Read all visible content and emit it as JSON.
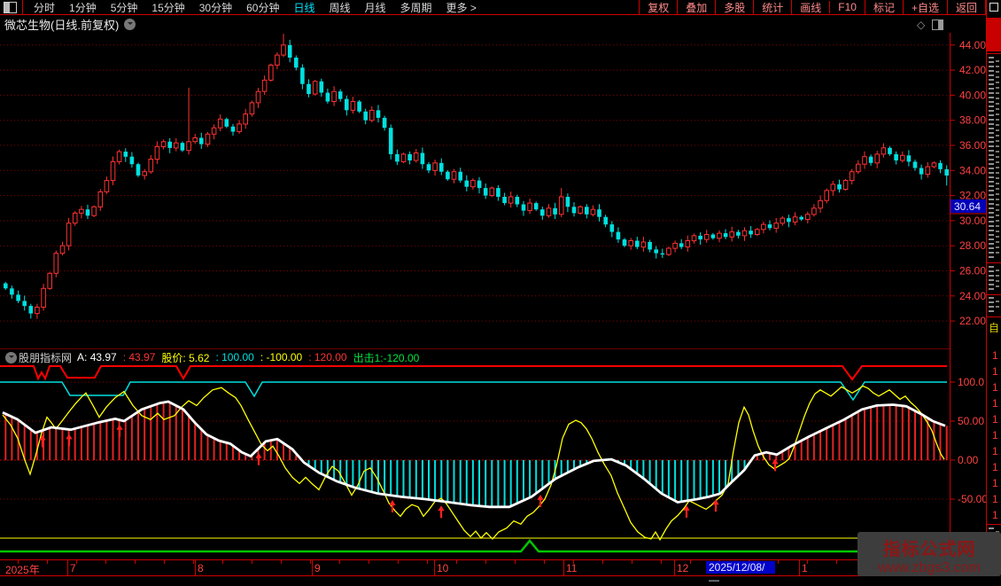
{
  "menubar": {
    "left_items": [
      "分时",
      "1分钟",
      "5分钟",
      "15分钟",
      "30分钟",
      "60分钟",
      "日线",
      "周线",
      "月线",
      "多周期",
      "更多 >"
    ],
    "active_item": "日线",
    "right_items": [
      "复权",
      "叠加",
      "多股",
      "统计",
      "画线",
      "F10",
      "标记",
      "+自选",
      "返回"
    ]
  },
  "titlebar": {
    "title": "微芯生物(日线.前复权)"
  },
  "price_axis": {
    "labels": [
      "44.00",
      "42.00",
      "40.00",
      "38.00",
      "36.00",
      "34.00",
      "32.00",
      "30.00",
      "28.00",
      "26.00",
      "24.00",
      "22.00"
    ],
    "values": [
      44,
      42,
      40,
      38,
      36,
      34,
      32,
      30,
      28,
      26,
      24,
      22
    ],
    "last_price": "30.64",
    "last_price_bg": "#0000b8"
  },
  "indicator_header": {
    "source": "股朋指标网",
    "segments": [
      {
        "text": "A: 43.97",
        "color": "#ffffff"
      },
      {
        "text": ": 43.97",
        "color": "#ff3333"
      },
      {
        "text": "股价: 5.62",
        "color": "#ffff00"
      },
      {
        "text": ": 100.00",
        "color": "#00dfdf"
      },
      {
        "text": ": -100.00",
        "color": "#ffff00"
      },
      {
        "text": ": 120.00",
        "color": "#ff3333"
      },
      {
        "text": "出击1:-120.00",
        "color": "#00e63c"
      }
    ]
  },
  "indicator_axis": {
    "labels": [
      "100.0",
      "50.00",
      "0.00",
      "-50.00"
    ],
    "values": [
      100,
      50,
      0,
      -50
    ]
  },
  "date_axis": {
    "year_label": "2025年",
    "months": [
      {
        "label": "7",
        "x": 79
      },
      {
        "label": "8",
        "x": 223
      },
      {
        "label": "9",
        "x": 355
      },
      {
        "label": "10",
        "x": 493
      },
      {
        "label": "11",
        "x": 639
      },
      {
        "label": "12",
        "x": 764
      },
      {
        "label": "1",
        "x": 905
      }
    ],
    "highlight": {
      "label": "2025/12/08/—",
      "x": 797,
      "w": 72
    }
  },
  "watermark": {
    "line1": "指标公式网",
    "line2": "www.zbgs3.com"
  },
  "right_strip": {
    "yellow_fragment": "自",
    "digit": "1",
    "digit_count": 11
  },
  "colors": {
    "up": "#ff3232",
    "down": "#00e0e0",
    "grid": "#8b0000",
    "axis_text": "#ff4242",
    "white_line": "#ffffff",
    "yellow_line": "#ffff00",
    "red_band": "#ff0000",
    "cyan_band": "#00dfdf",
    "green_line": "#00c800",
    "arrow": "#ff2020"
  },
  "chart_data": [
    {
      "type": "candlestick",
      "title": "微芯生物 日线 前复权",
      "ylim": [
        21.5,
        45.5
      ],
      "grid_step": 2,
      "closes": [
        24.6,
        24.1,
        23.6,
        23.2,
        22.6,
        23.1,
        24.6,
        25.8,
        27.4,
        28.0,
        29.8,
        30.6,
        30.9,
        30.4,
        31.1,
        32.3,
        33.2,
        34.7,
        35.5,
        35.1,
        34.5,
        33.6,
        33.9,
        34.9,
        35.9,
        36.3,
        35.8,
        36.2,
        35.6,
        36.3,
        36.6,
        36.1,
        36.9,
        37.4,
        38.1,
        37.5,
        37.1,
        37.7,
        38.5,
        39.4,
        40.3,
        41.2,
        42.4,
        43.2,
        44.0,
        43.0,
        42.2,
        40.9,
        40.1,
        41.1,
        40.2,
        39.5,
        40.3,
        39.7,
        38.8,
        39.5,
        38.7,
        38.0,
        38.8,
        38.2,
        37.4,
        35.3,
        34.7,
        35.3,
        34.8,
        35.4,
        34.5,
        34.0,
        34.6,
        33.9,
        33.3,
        33.9,
        33.2,
        32.7,
        33.2,
        32.6,
        32.0,
        32.6,
        31.9,
        31.4,
        31.9,
        31.3,
        30.8,
        31.4,
        30.9,
        30.4,
        31.0,
        30.5,
        31.9,
        31.1,
        30.6,
        31.1,
        30.5,
        30.9,
        30.3,
        29.7,
        29.1,
        28.5,
        28.0,
        28.4,
        27.9,
        28.3,
        27.7,
        27.4,
        27.3,
        27.8,
        28.2,
        27.9,
        28.4,
        28.8,
        28.5,
        28.9,
        28.6,
        29.0,
        28.7,
        29.1,
        28.8,
        29.2,
        28.9,
        29.3,
        29.7,
        29.4,
        29.8,
        30.2,
        29.9,
        30.3,
        30.1,
        30.5,
        31.0,
        31.6,
        32.4,
        32.9,
        32.5,
        33.2,
        33.9,
        34.5,
        35.1,
        34.6,
        35.3,
        35.8,
        35.3,
        34.8,
        35.2,
        34.7,
        34.2,
        33.7,
        34.3,
        34.6,
        34.1,
        33.6
      ],
      "specials": {
        "4": {
          "low": 22.2
        },
        "29": {
          "high": 40.6
        },
        "44": {
          "high": 44.9
        },
        "88": {
          "high": 32.6
        },
        "149": {
          "low": 32.8
        }
      }
    },
    {
      "type": "multi-line",
      "ylim": [
        -135,
        145
      ],
      "levels": {
        "upper_red": 120,
        "ref_high_cyan": 100,
        "ref_low_yellow": -100,
        "chuji_green": -120
      },
      "grid_values": [
        100,
        50,
        0,
        -50
      ],
      "white_line": [
        [
          3,
          61
        ],
        [
          20,
          52
        ],
        [
          40,
          35
        ],
        [
          58,
          42
        ],
        [
          80,
          39
        ],
        [
          110,
          48
        ],
        [
          130,
          53
        ],
        [
          140,
          50
        ],
        [
          160,
          65
        ],
        [
          180,
          73
        ],
        [
          190,
          75
        ],
        [
          207,
          65
        ],
        [
          220,
          48
        ],
        [
          233,
          33
        ],
        [
          247,
          25
        ],
        [
          260,
          21
        ],
        [
          273,
          10
        ],
        [
          283,
          5
        ],
        [
          300,
          24
        ],
        [
          313,
          27
        ],
        [
          330,
          14
        ],
        [
          343,
          -3
        ],
        [
          360,
          -16
        ],
        [
          380,
          -27
        ],
        [
          400,
          -35
        ],
        [
          427,
          -43
        ],
        [
          453,
          -47
        ],
        [
          480,
          -50
        ],
        [
          507,
          -54
        ],
        [
          533,
          -58
        ],
        [
          553,
          -60
        ],
        [
          575,
          -60
        ],
        [
          600,
          -47
        ],
        [
          627,
          -24
        ],
        [
          653,
          -9
        ],
        [
          670,
          -1
        ],
        [
          690,
          1
        ],
        [
          707,
          -7
        ],
        [
          727,
          -24
        ],
        [
          747,
          -43
        ],
        [
          765,
          -54
        ],
        [
          787,
          -50
        ],
        [
          800,
          -47
        ],
        [
          813,
          -43
        ],
        [
          827,
          -27
        ],
        [
          840,
          -13
        ],
        [
          852,
          6
        ],
        [
          865,
          10
        ],
        [
          877,
          7
        ],
        [
          893,
          18
        ],
        [
          913,
          30
        ],
        [
          933,
          41
        ],
        [
          953,
          52
        ],
        [
          973,
          65
        ],
        [
          990,
          70
        ],
        [
          1008,
          71
        ],
        [
          1023,
          69
        ],
        [
          1040,
          59
        ],
        [
          1053,
          50
        ],
        [
          1067,
          44
        ]
      ],
      "yellow_line": [
        [
          3,
          58
        ],
        [
          12,
          45
        ],
        [
          20,
          28
        ],
        [
          28,
          0
        ],
        [
          34,
          -18
        ],
        [
          40,
          5
        ],
        [
          47,
          35
        ],
        [
          53,
          55
        ],
        [
          58,
          48
        ],
        [
          63,
          40
        ],
        [
          70,
          50
        ],
        [
          78,
          62
        ],
        [
          85,
          72
        ],
        [
          93,
          82
        ],
        [
          97,
          86
        ],
        [
          105,
          70
        ],
        [
          112,
          55
        ],
        [
          120,
          68
        ],
        [
          130,
          80
        ],
        [
          140,
          88
        ],
        [
          150,
          70
        ],
        [
          160,
          57
        ],
        [
          170,
          52
        ],
        [
          178,
          60
        ],
        [
          185,
          52
        ],
        [
          197,
          57
        ],
        [
          205,
          68
        ],
        [
          213,
          76
        ],
        [
          222,
          70
        ],
        [
          230,
          80
        ],
        [
          240,
          90
        ],
        [
          250,
          93
        ],
        [
          258,
          86
        ],
        [
          266,
          80
        ],
        [
          272,
          70
        ],
        [
          280,
          52
        ],
        [
          288,
          35
        ],
        [
          295,
          20
        ],
        [
          302,
          12
        ],
        [
          308,
          18
        ],
        [
          315,
          5
        ],
        [
          322,
          -10
        ],
        [
          330,
          -22
        ],
        [
          338,
          -30
        ],
        [
          345,
          -22
        ],
        [
          352,
          -30
        ],
        [
          360,
          -38
        ],
        [
          368,
          -20
        ],
        [
          375,
          -8
        ],
        [
          382,
          -14
        ],
        [
          390,
          -30
        ],
        [
          397,
          -45
        ],
        [
          404,
          -32
        ],
        [
          411,
          -14
        ],
        [
          418,
          -10
        ],
        [
          425,
          -22
        ],
        [
          432,
          -38
        ],
        [
          439,
          -55
        ],
        [
          446,
          -65
        ],
        [
          452,
          -72
        ],
        [
          458,
          -63
        ],
        [
          465,
          -57
        ],
        [
          472,
          -60
        ],
        [
          478,
          -72
        ],
        [
          484,
          -64
        ],
        [
          491,
          -53
        ],
        [
          498,
          -49
        ],
        [
          504,
          -56
        ],
        [
          511,
          -68
        ],
        [
          518,
          -80
        ],
        [
          524,
          -90
        ],
        [
          531,
          -98
        ],
        [
          537,
          -91
        ],
        [
          543,
          -100
        ],
        [
          549,
          -93
        ],
        [
          556,
          -101
        ],
        [
          563,
          -92
        ],
        [
          572,
          -87
        ],
        [
          580,
          -78
        ],
        [
          588,
          -82
        ],
        [
          595,
          -72
        ],
        [
          602,
          -67
        ],
        [
          608,
          -60
        ],
        [
          615,
          -50
        ],
        [
          622,
          -32
        ],
        [
          628,
          -8
        ],
        [
          635,
          28
        ],
        [
          642,
          46
        ],
        [
          650,
          51
        ],
        [
          656,
          48
        ],
        [
          662,
          40
        ],
        [
          668,
          28
        ],
        [
          675,
          10
        ],
        [
          682,
          -5
        ],
        [
          690,
          -20
        ],
        [
          697,
          -42
        ],
        [
          705,
          -62
        ],
        [
          712,
          -80
        ],
        [
          720,
          -92
        ],
        [
          728,
          -99
        ],
        [
          735,
          -101
        ],
        [
          740,
          -92
        ],
        [
          745,
          -102
        ],
        [
          752,
          -88
        ],
        [
          758,
          -78
        ],
        [
          765,
          -71
        ],
        [
          772,
          -62
        ],
        [
          778,
          -52
        ],
        [
          785,
          -56
        ],
        [
          790,
          -59
        ],
        [
          797,
          -63
        ],
        [
          803,
          -58
        ],
        [
          808,
          -52
        ],
        [
          815,
          -45
        ],
        [
          822,
          -30
        ],
        [
          828,
          12
        ],
        [
          834,
          48
        ],
        [
          840,
          68
        ],
        [
          845,
          58
        ],
        [
          850,
          38
        ],
        [
          856,
          18
        ],
        [
          862,
          4
        ],
        [
          868,
          -6
        ],
        [
          874,
          -11
        ],
        [
          880,
          -7
        ],
        [
          886,
          -3
        ],
        [
          891,
          2
        ],
        [
          896,
          16
        ],
        [
          902,
          36
        ],
        [
          908,
          56
        ],
        [
          914,
          73
        ],
        [
          920,
          85
        ],
        [
          926,
          90
        ],
        [
          932,
          86
        ],
        [
          938,
          82
        ],
        [
          944,
          88
        ],
        [
          950,
          94
        ],
        [
          956,
          90
        ],
        [
          962,
          86
        ],
        [
          968,
          90
        ],
        [
          974,
          95
        ],
        [
          980,
          92
        ],
        [
          986,
          86
        ],
        [
          992,
          82
        ],
        [
          998,
          86
        ],
        [
          1004,
          90
        ],
        [
          1010,
          84
        ],
        [
          1016,
          78
        ],
        [
          1022,
          82
        ],
        [
          1028,
          74
        ],
        [
          1034,
          68
        ],
        [
          1040,
          60
        ],
        [
          1046,
          50
        ],
        [
          1052,
          38
        ],
        [
          1057,
          22
        ],
        [
          1062,
          8
        ],
        [
          1066,
          1
        ]
      ],
      "red_band_pts": [
        [
          0,
          19
        ],
        [
          38,
          19
        ],
        [
          43,
          33
        ],
        [
          47,
          26
        ],
        [
          51,
          33
        ],
        [
          56,
          19
        ],
        [
          68,
          19
        ],
        [
          76,
          32
        ],
        [
          107,
          32
        ],
        [
          114,
          19
        ],
        [
          199,
          19
        ],
        [
          207,
          33
        ],
        [
          215,
          19
        ],
        [
          951,
          19
        ],
        [
          962,
          34
        ],
        [
          973,
          19
        ],
        [
          1069,
          19
        ]
      ],
      "cyan_band_pts": [
        [
          0,
          37
        ],
        [
          70,
          37
        ],
        [
          79,
          52
        ],
        [
          139,
          52
        ],
        [
          147,
          37
        ],
        [
          277,
          37
        ],
        [
          287,
          53
        ],
        [
          296,
          37
        ],
        [
          949,
          37
        ],
        [
          963,
          57
        ],
        [
          976,
          37
        ],
        [
          1069,
          37
        ]
      ],
      "green_pts": [
        [
          0,
          228
        ],
        [
          588,
          228
        ],
        [
          598,
          216
        ],
        [
          608,
          228
        ],
        [
          1069,
          228
        ]
      ],
      "arrows_x": [
        48,
        78,
        135,
        292,
        443,
        498,
        610,
        775,
        808,
        875
      ]
    }
  ]
}
